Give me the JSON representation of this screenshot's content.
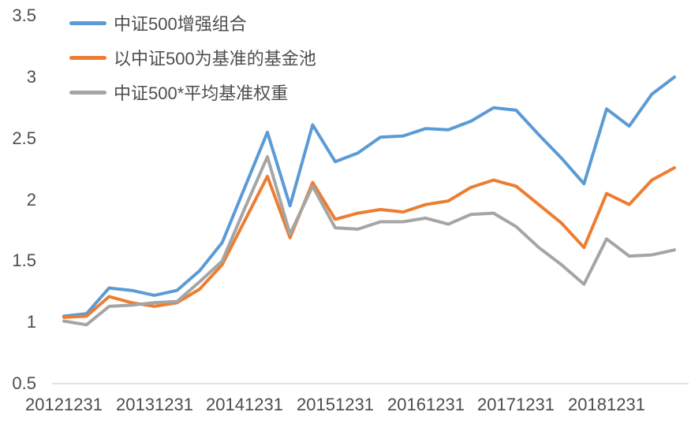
{
  "chart_data": {
    "type": "line",
    "title": "",
    "xlabel": "",
    "ylabel": "",
    "ylim": [
      0.5,
      3.5
    ],
    "y_tick_labels": [
      "3.5",
      "3",
      "2.5",
      "2",
      "1.5",
      "1",
      "0.5"
    ],
    "y_tick_values": [
      3.5,
      3,
      2.5,
      2,
      1.5,
      1,
      0.5
    ],
    "x_tick_labels": [
      "20121231",
      "20131231",
      "20141231",
      "20151231",
      "20161231",
      "20171231",
      "20181231"
    ],
    "x_tick_point_indices": [
      0,
      4,
      8,
      12,
      16,
      20,
      24
    ],
    "n_points": 28,
    "points_per_tick_interval": 4,
    "grid": "single light horizontal baseline at y=0.5 only",
    "legend_position": "top-left",
    "series": [
      {
        "name": "中证500增强组合",
        "color": "#5B9BD5",
        "values": [
          1.05,
          1.07,
          1.28,
          1.26,
          1.22,
          1.26,
          1.42,
          1.65,
          2.1,
          2.55,
          1.95,
          2.61,
          2.31,
          2.38,
          2.51,
          2.52,
          2.58,
          2.57,
          2.64,
          2.75,
          2.73,
          2.53,
          2.34,
          2.13,
          2.74,
          2.6,
          2.86,
          3.0
        ]
      },
      {
        "name": "以中证500为基准的基金池",
        "color": "#ED7D31",
        "values": [
          1.04,
          1.05,
          1.21,
          1.16,
          1.13,
          1.16,
          1.27,
          1.47,
          1.83,
          2.19,
          1.69,
          2.14,
          1.84,
          1.89,
          1.92,
          1.9,
          1.96,
          1.99,
          2.1,
          2.16,
          2.11,
          1.96,
          1.81,
          1.61,
          2.05,
          1.96,
          2.16,
          2.26
        ]
      },
      {
        "name": "中证500*平均基准权重",
        "color": "#A5A5A5",
        "values": [
          1.01,
          0.98,
          1.13,
          1.14,
          1.16,
          1.17,
          1.33,
          1.5,
          1.93,
          2.35,
          1.72,
          2.11,
          1.77,
          1.76,
          1.82,
          1.82,
          1.85,
          1.8,
          1.88,
          1.89,
          1.78,
          1.61,
          1.47,
          1.31,
          1.68,
          1.54,
          1.55,
          1.59
        ]
      }
    ],
    "style": {
      "line_width": 4,
      "text_color": "#4d4d4d",
      "gridline_color": "#D9D9D9",
      "background": "#FFFFFF"
    }
  }
}
